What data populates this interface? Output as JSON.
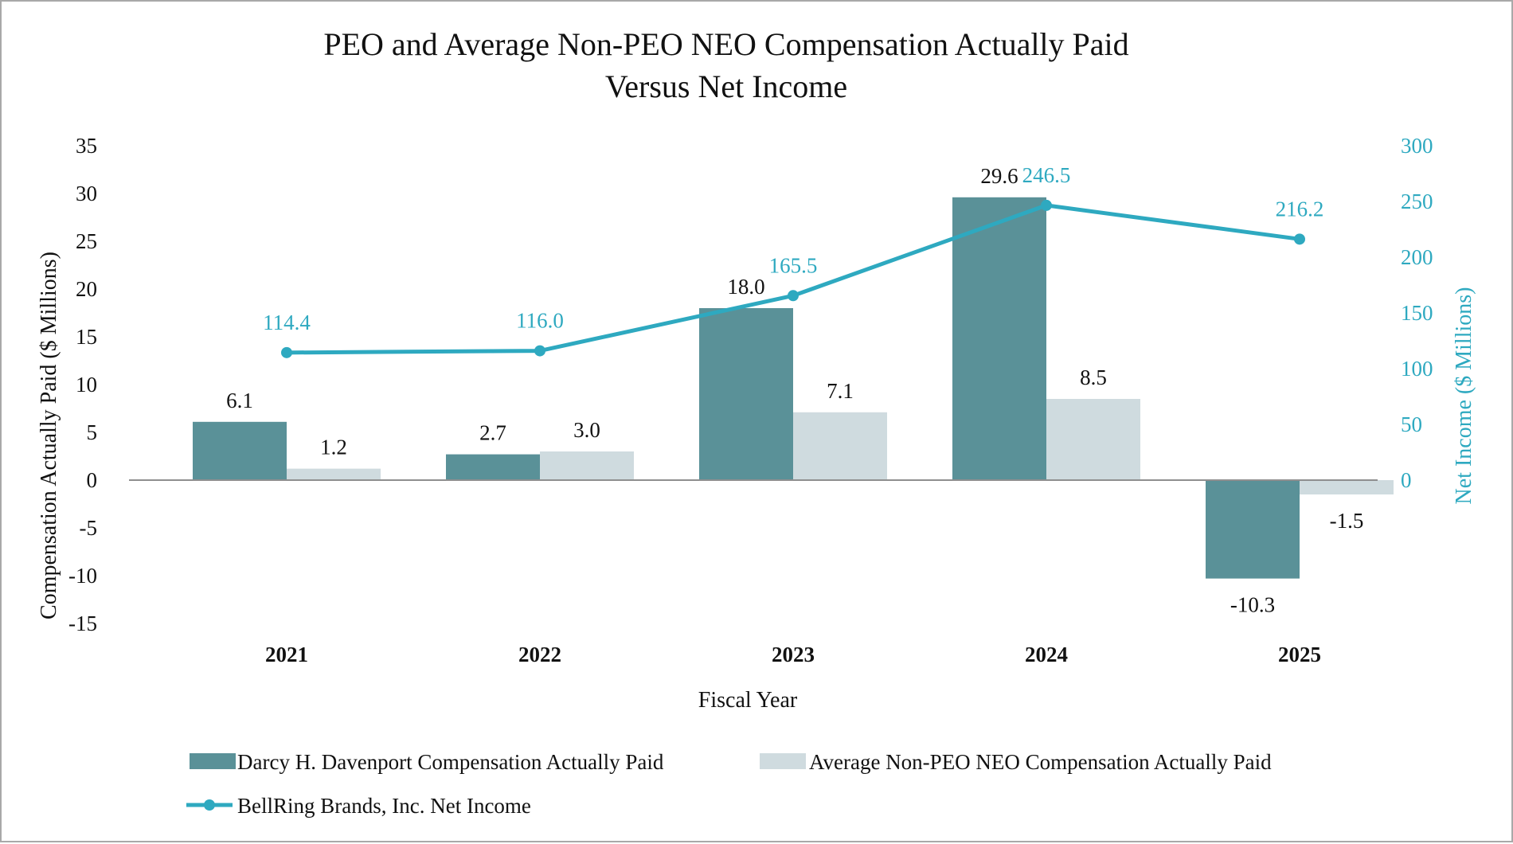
{
  "chart_data": {
    "type": "bar",
    "title_lines": [
      "PEO and Average Non-PEO NEO Compensation Actually Paid",
      "Versus Net Income"
    ],
    "xlabel": "Fiscal Year",
    "ylabel": "Compensation Actually Paid ($ Millions)",
    "y2label": "Net Income ($ Millions)",
    "categories": [
      "2021",
      "2022",
      "2023",
      "2024",
      "2025"
    ],
    "ylim": [
      -15,
      35
    ],
    "yticks": [
      35,
      30,
      25,
      20,
      15,
      10,
      5,
      0,
      -5,
      -10,
      -15
    ],
    "y2lim": [
      0,
      300
    ],
    "y2ticks": [
      300,
      250,
      200,
      150,
      100,
      50,
      0
    ],
    "series": [
      {
        "name": "Darcy H. Davenport Compensation Actually Paid",
        "kind": "bar",
        "color": "#5a9198",
        "values": [
          6.1,
          2.7,
          18.0,
          29.6,
          -10.3
        ],
        "labels": [
          "6.1",
          "2.7",
          "18.0",
          "29.6",
          "-10.3"
        ]
      },
      {
        "name": "Average Non-PEO NEO Compensation Actually Paid",
        "kind": "bar",
        "color": "#cfdbdf",
        "values": [
          1.2,
          3.0,
          7.1,
          8.5,
          -1.5
        ],
        "labels": [
          "1.2",
          "3.0",
          "7.1",
          "8.5",
          "-1.5"
        ]
      },
      {
        "name": "BellRing Brands, Inc. Net Income",
        "kind": "line",
        "axis": "right",
        "color": "#2ea9c0",
        "values": [
          114.4,
          116.0,
          165.5,
          246.5,
          216.2
        ],
        "labels": [
          "114.4",
          "116.0",
          "165.5",
          "246.5",
          "216.2"
        ]
      }
    ],
    "legend": "bottom"
  }
}
